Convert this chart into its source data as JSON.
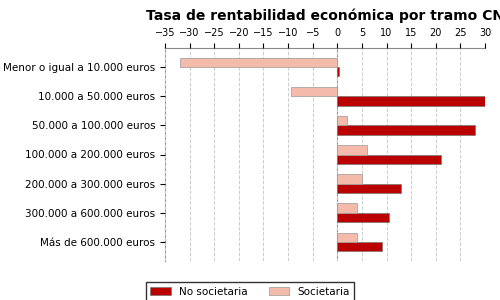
{
  "title": "Tasa de rentabilidad económica por tramo CN",
  "categories": [
    "Menor o igual a 10.000 euros",
    "10.000 a 50.000 euros",
    "50.000 a 100.000 euros",
    "100.000 a 200.000 euros",
    "200.000 a 300.000 euros",
    "300.000 a 600.000 euros",
    "Más de 600.000 euros"
  ],
  "no_societaria": [
    0.3,
    30.5,
    28.0,
    21.0,
    13.0,
    10.5,
    9.0
  ],
  "societaria": [
    -32.0,
    -9.5,
    2.0,
    6.0,
    5.0,
    4.0,
    4.0
  ],
  "color_no_soc": "#BB0000",
  "color_soc": "#F4BBAA",
  "xlim": [
    -35,
    30
  ],
  "xticks": [
    -35,
    -30,
    -25,
    -20,
    -15,
    -10,
    -5,
    0,
    5,
    10,
    15,
    20,
    25,
    30
  ],
  "legend_no_soc": "No societaria",
  "legend_soc": "Societaria",
  "background_color": "#FFFFFF",
  "grid_color": "#CCCCCC",
  "bar_height": 0.32,
  "title_fontsize": 10,
  "tick_fontsize": 7,
  "ylabel_fontsize": 7.5
}
